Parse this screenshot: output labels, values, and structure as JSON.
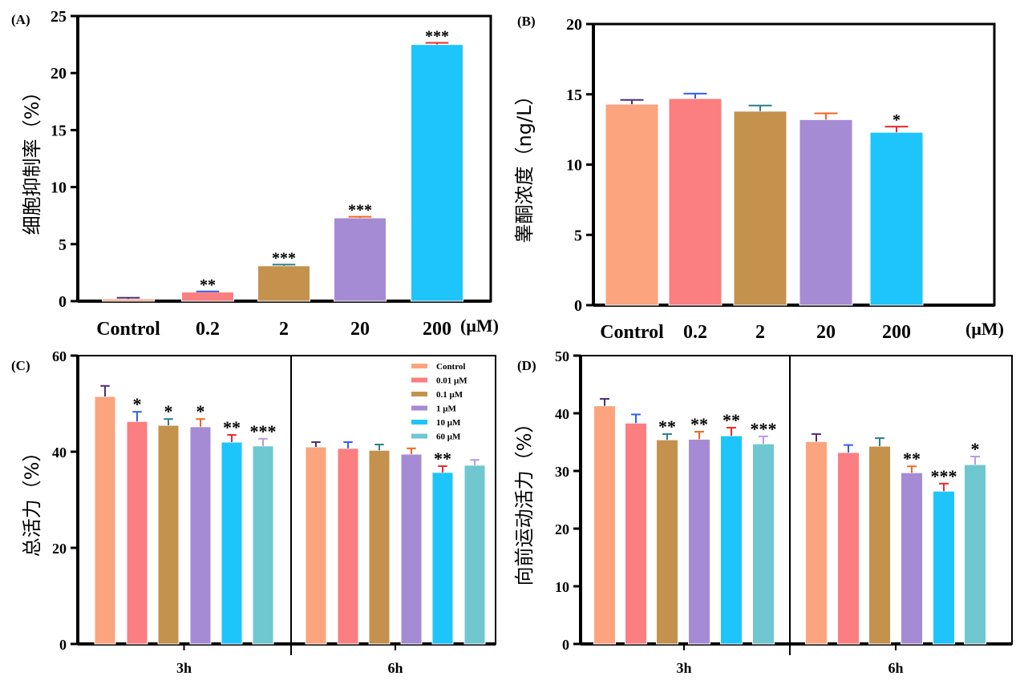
{
  "colors": {
    "Control": "#a58bd4",
    "0.01": "#1dc5fc",
    "0.1": "#6fc7d0",
    "1": "#fba47e",
    "10": "#fb7e80",
    "60": "#c4924d"
  },
  "error_colors": [
    "#4b2f7a",
    "#2f5ff0",
    "#2c7f88",
    "#f5651d",
    "#f02828",
    "#b79be0"
  ],
  "chart_data": [
    {
      "panel": "(A)",
      "type": "bar",
      "ylabel": "细胞抑制率（%）",
      "xunit": "(μM)",
      "categories": [
        "Control",
        "0.2",
        "2",
        "20",
        "200"
      ],
      "values": [
        0.2,
        0.8,
        3.1,
        7.3,
        22.5
      ],
      "errors": [
        0.1,
        0.05,
        0.1,
        0.1,
        0.15
      ],
      "significance": [
        "",
        "**",
        "***",
        "***",
        "***"
      ],
      "ylim": [
        0,
        25
      ],
      "yticks": [
        0,
        5,
        10,
        15,
        20,
        25
      ]
    },
    {
      "panel": "(B)",
      "type": "bar",
      "ylabel": "睾酮浓度（ng/L）",
      "xunit": "(μM)",
      "categories": [
        "Control",
        "0.2",
        "2",
        "20",
        "200"
      ],
      "values": [
        14.3,
        14.7,
        13.8,
        13.2,
        12.3
      ],
      "errors": [
        0.3,
        0.35,
        0.4,
        0.45,
        0.4
      ],
      "significance": [
        "",
        "",
        "",
        "",
        "*"
      ],
      "ylim": [
        0,
        20
      ],
      "yticks": [
        0,
        5,
        10,
        15,
        20
      ]
    },
    {
      "panel": "(C)",
      "type": "bar",
      "ylabel": "总活力（%）",
      "groups": [
        "3h",
        "6h"
      ],
      "legend": [
        "Control",
        "0.01 μM",
        "0.1 μM",
        "1 μM",
        "10 μM",
        "60 μM"
      ],
      "legend_position": "top-right",
      "series_values": [
        [
          51.5,
          46.3,
          45.5,
          45.2,
          42.0,
          41.2
        ],
        [
          41.0,
          40.7,
          40.3,
          39.5,
          35.7,
          37.2
        ]
      ],
      "errors": [
        [
          2.2,
          2.0,
          1.3,
          1.6,
          1.5,
          1.5
        ],
        [
          1.0,
          1.3,
          1.2,
          1.2,
          1.3,
          1.1
        ]
      ],
      "significance": [
        [
          "",
          "*",
          "*",
          "*",
          "**",
          "***"
        ],
        [
          "",
          "",
          "",
          "",
          "**",
          ""
        ]
      ],
      "ylim": [
        0,
        60
      ],
      "yticks": [
        0,
        20,
        40,
        60
      ]
    },
    {
      "panel": "(D)",
      "type": "bar",
      "ylabel": "向前运动活力（%）",
      "groups": [
        "3h",
        "6h"
      ],
      "series_values": [
        [
          41.3,
          38.3,
          35.4,
          35.5,
          36.1,
          34.7
        ],
        [
          35.1,
          33.2,
          34.3,
          29.7,
          26.5,
          31.1
        ]
      ],
      "errors": [
        [
          1.2,
          1.5,
          1.0,
          1.3,
          1.4,
          1.3
        ],
        [
          1.3,
          1.3,
          1.4,
          1.1,
          1.3,
          1.4
        ]
      ],
      "significance": [
        [
          "",
          "",
          "**",
          "**",
          "**",
          "***"
        ],
        [
          "",
          "",
          "",
          "**",
          "***",
          "*"
        ]
      ],
      "ylim": [
        0,
        50
      ],
      "yticks": [
        0,
        10,
        20,
        30,
        40,
        50
      ]
    }
  ]
}
